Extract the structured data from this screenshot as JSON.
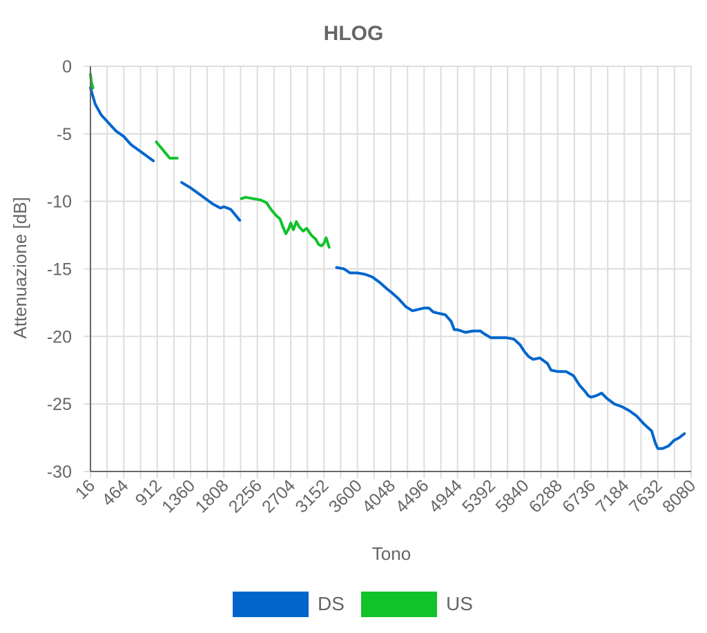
{
  "chart_data": {
    "type": "line",
    "title": "HLOG",
    "xlabel": "Tono",
    "ylabel": "Attenuazione [dB]",
    "xlim": [
      16,
      8080
    ],
    "ylim": [
      -30,
      0
    ],
    "x_ticks": [
      "16",
      "464",
      "912",
      "1360",
      "1808",
      "2256",
      "2704",
      "3152",
      "3600",
      "4048",
      "4496",
      "4944",
      "5392",
      "5840",
      "6288",
      "6736",
      "7184",
      "7632",
      "8080"
    ],
    "y_ticks": [
      "0",
      "-5",
      "-10",
      "-15",
      "-20",
      "-25",
      "-30"
    ],
    "grid": true,
    "legend_position": "bottom",
    "series": [
      {
        "name": "DS",
        "color": "#0066cc",
        "segments": [
          [
            [
              16,
              -1.6
            ],
            [
              80,
              -2.8
            ],
            [
              160,
              -3.6
            ],
            [
              260,
              -4.2
            ],
            [
              360,
              -4.8
            ],
            [
              464,
              -5.2
            ],
            [
              560,
              -5.8
            ],
            [
              660,
              -6.2
            ],
            [
              760,
              -6.6
            ],
            [
              860,
              -7.0
            ]
          ],
          [
            [
              1240,
              -8.6
            ],
            [
              1360,
              -9.0
            ],
            [
              1460,
              -9.4
            ],
            [
              1560,
              -9.8
            ],
            [
              1660,
              -10.2
            ],
            [
              1760,
              -10.5
            ],
            [
              1808,
              -10.4
            ],
            [
              1900,
              -10.6
            ],
            [
              1960,
              -11.0
            ],
            [
              2020,
              -11.4
            ]
          ],
          [
            [
              3320,
              -14.9
            ],
            [
              3420,
              -15.0
            ],
            [
              3500,
              -15.3
            ],
            [
              3600,
              -15.3
            ],
            [
              3700,
              -15.4
            ],
            [
              3800,
              -15.6
            ],
            [
              3900,
              -16.0
            ],
            [
              4000,
              -16.5
            ],
            [
              4048,
              -16.7
            ],
            [
              4150,
              -17.2
            ],
            [
              4250,
              -17.8
            ],
            [
              4340,
              -18.1
            ],
            [
              4420,
              -18.0
            ],
            [
              4496,
              -17.9
            ],
            [
              4560,
              -17.9
            ],
            [
              4620,
              -18.2
            ],
            [
              4700,
              -18.3
            ],
            [
              4780,
              -18.4
            ],
            [
              4860,
              -18.9
            ],
            [
              4900,
              -19.5
            ],
            [
              4944,
              -19.5
            ],
            [
              5050,
              -19.7
            ],
            [
              5150,
              -19.6
            ],
            [
              5250,
              -19.6
            ],
            [
              5300,
              -19.8
            ],
            [
              5392,
              -20.1
            ],
            [
              5500,
              -20.1
            ],
            [
              5600,
              -20.1
            ],
            [
              5700,
              -20.2
            ],
            [
              5780,
              -20.6
            ],
            [
              5840,
              -21.1
            ],
            [
              5900,
              -21.5
            ],
            [
              5960,
              -21.7
            ],
            [
              6050,
              -21.6
            ],
            [
              6150,
              -22.0
            ],
            [
              6200,
              -22.5
            ],
            [
              6288,
              -22.6
            ],
            [
              6400,
              -22.6
            ],
            [
              6500,
              -22.9
            ],
            [
              6580,
              -23.6
            ],
            [
              6660,
              -24.1
            ],
            [
              6700,
              -24.4
            ],
            [
              6736,
              -24.5
            ],
            [
              6800,
              -24.4
            ],
            [
              6880,
              -24.2
            ],
            [
              6950,
              -24.6
            ],
            [
              7050,
              -25.0
            ],
            [
              7150,
              -25.2
            ],
            [
              7250,
              -25.5
            ],
            [
              7350,
              -25.9
            ],
            [
              7450,
              -26.5
            ],
            [
              7550,
              -27.0
            ],
            [
              7600,
              -27.9
            ],
            [
              7632,
              -28.3
            ],
            [
              7700,
              -28.3
            ],
            [
              7780,
              -28.1
            ],
            [
              7850,
              -27.7
            ],
            [
              7920,
              -27.5
            ],
            [
              7990,
              -27.2
            ]
          ]
        ]
      },
      {
        "name": "US",
        "color": "#11c22a",
        "segments": [
          [
            [
              16,
              -0.6
            ],
            [
              30,
              -1.2
            ],
            [
              50,
              -1.6
            ]
          ],
          [
            [
              900,
              -5.6
            ],
            [
              960,
              -6.0
            ],
            [
              1020,
              -6.4
            ],
            [
              1080,
              -6.8
            ],
            [
              1180,
              -6.8
            ]
          ],
          [
            [
              2040,
              -9.8
            ],
            [
              2100,
              -9.7
            ],
            [
              2200,
              -9.8
            ],
            [
              2300,
              -9.9
            ],
            [
              2380,
              -10.1
            ],
            [
              2440,
              -10.6
            ],
            [
              2500,
              -11.0
            ],
            [
              2560,
              -11.3
            ],
            [
              2600,
              -11.9
            ],
            [
              2640,
              -12.4
            ],
            [
              2680,
              -12.0
            ],
            [
              2704,
              -11.6
            ],
            [
              2740,
              -12.1
            ],
            [
              2780,
              -11.5
            ],
            [
              2820,
              -11.9
            ],
            [
              2870,
              -12.2
            ],
            [
              2920,
              -12.0
            ],
            [
              2980,
              -12.5
            ],
            [
              3040,
              -12.8
            ],
            [
              3080,
              -13.2
            ],
            [
              3120,
              -13.3
            ],
            [
              3152,
              -13.1
            ],
            [
              3180,
              -12.7
            ],
            [
              3220,
              -13.4
            ]
          ]
        ]
      }
    ]
  }
}
